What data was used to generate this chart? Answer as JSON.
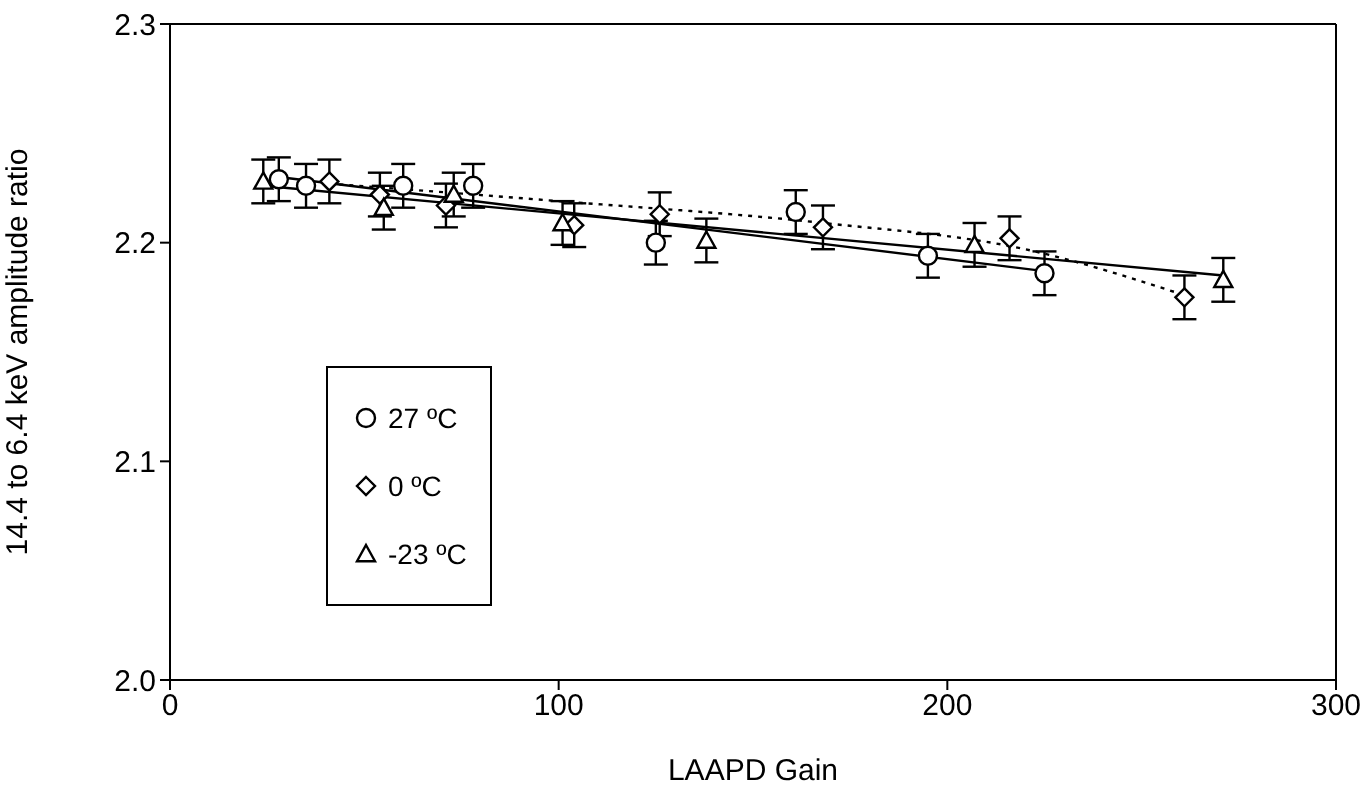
{
  "chart_data": {
    "type": "scatter",
    "xlabel": "LAAPD Gain",
    "ylabel": "14.4 to 6.4 keV amplitude ratio",
    "xlim": [
      0,
      300
    ],
    "xticks": [
      0,
      100,
      200,
      300
    ],
    "ylim": [
      2.0,
      2.3
    ],
    "yticks": [
      {
        "value": 2,
        "label": "2.0"
      },
      {
        "value": 2.1,
        "label": "2.1"
      },
      {
        "value": 2.2,
        "label": "2.2"
      },
      {
        "value": 2.3,
        "label": "2.3"
      }
    ],
    "legend": "bottom left",
    "series": [
      {
        "name": "27 ºC",
        "color": "#000000",
        "marker": "circle",
        "x": [
          28,
          35,
          60,
          78,
          125,
          161,
          195,
          225
        ],
        "values": [
          2.229,
          2.226,
          2.226,
          2.226,
          2.2,
          2.214,
          2.194,
          2.186
        ],
        "errors": [
          0.01,
          0.01,
          0.01,
          0.01,
          0.01,
          0.01,
          0.01,
          0.01
        ]
      },
      {
        "name": "0 ºC",
        "color": "#000000",
        "marker": "diamond",
        "x": [
          41,
          54,
          71,
          104,
          126,
          168,
          216,
          261
        ],
        "values": [
          2.228,
          2.222,
          2.217,
          2.208,
          2.213,
          2.207,
          2.202,
          2.175
        ],
        "errors": [
          0.01,
          0.01,
          0.01,
          0.01,
          0.01,
          0.01,
          0.01,
          0.01
        ]
      },
      {
        "name": "-23 ºC",
        "color": "#000000",
        "marker": "triangle",
        "x": [
          24,
          55,
          73,
          101,
          138,
          207,
          271
        ],
        "values": [
          2.228,
          2.216,
          2.222,
          2.209,
          2.201,
          2.199,
          2.183
        ],
        "errors": [
          0.01,
          0.01,
          0.01,
          0.01,
          0.01,
          0.01,
          0.01
        ]
      },
      {
        "type": "line",
        "color": "#000000",
        "line_style": "solid",
        "marker": "none",
        "x": [
          28,
          225
        ],
        "values": [
          2.23,
          2.187
        ]
      },
      {
        "type": "line",
        "color": "#000000",
        "line_style": "dotted",
        "marker": "none",
        "x": [
          41,
          100,
          168,
          220,
          261
        ],
        "values": [
          2.227,
          2.219,
          2.209,
          2.197,
          2.176
        ]
      },
      {
        "type": "line",
        "color": "#000000",
        "line_style": "solid",
        "marker": "none",
        "x": [
          24,
          271
        ],
        "values": [
          2.226,
          2.185
        ]
      }
    ]
  }
}
